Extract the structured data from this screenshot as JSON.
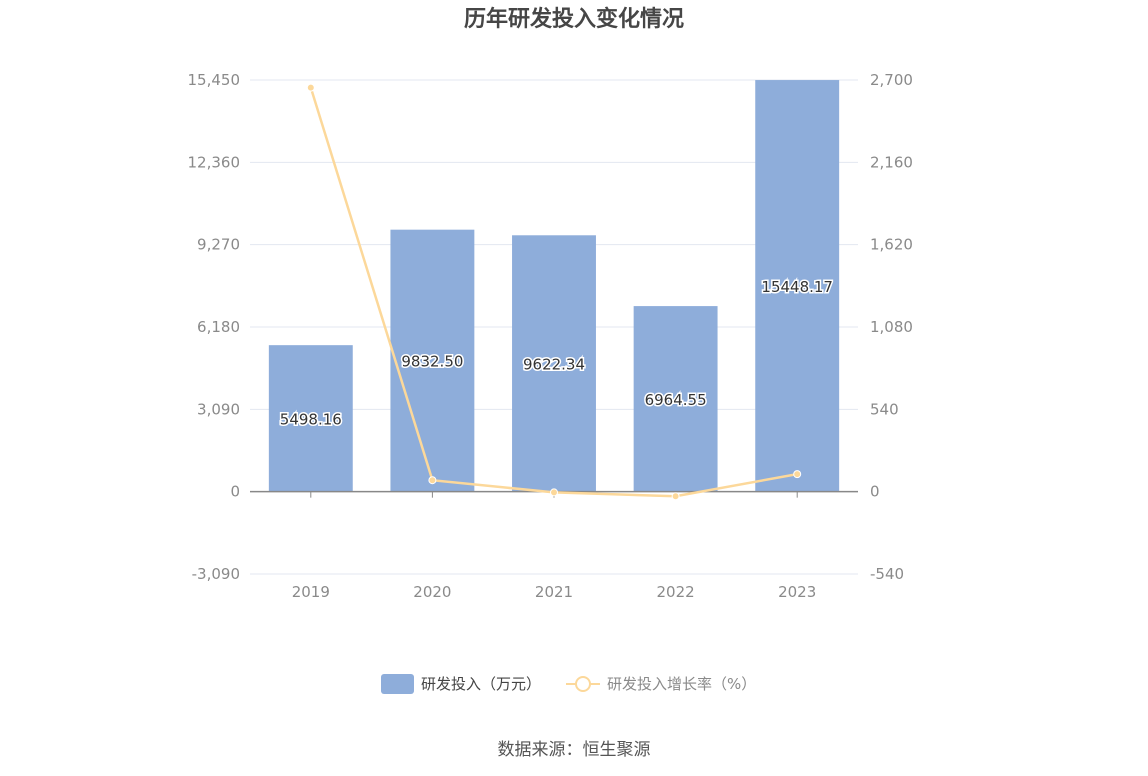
{
  "chart_data": {
    "type": "bar",
    "title": "历年研发投入变化情况",
    "categories": [
      "2019",
      "2020",
      "2021",
      "2022",
      "2023"
    ],
    "series": [
      {
        "name": "研发投入（万元）",
        "type": "bar",
        "axis": "left",
        "values": [
          5498.16,
          9832.5,
          9622.34,
          6964.55,
          15448.17
        ],
        "labels": [
          "5498.16",
          "9832.50",
          "9622.34",
          "6964.55",
          "15448.17"
        ]
      },
      {
        "name": "研发投入增长率（%）",
        "type": "line",
        "axis": "right",
        "values": [
          2650,
          75,
          -5,
          -30,
          115
        ]
      }
    ],
    "y_left": {
      "ylim": [
        -3090,
        15450
      ],
      "ticks": [
        "-3,090",
        "0",
        "3,090",
        "6,180",
        "9,270",
        "12,360",
        "15,450"
      ]
    },
    "y_right": {
      "ylim": [
        -540,
        2700
      ],
      "ticks": [
        "-540",
        "0",
        "540",
        "1,080",
        "1,620",
        "2,160",
        "2,700"
      ]
    },
    "legend_position": "bottom",
    "grid": true,
    "colors": {
      "bar": "#8eadda",
      "line": "#fcd89a",
      "grid": "#e3e7f0",
      "axis": "#888888"
    }
  },
  "source_text": "数据来源：恒生聚源"
}
